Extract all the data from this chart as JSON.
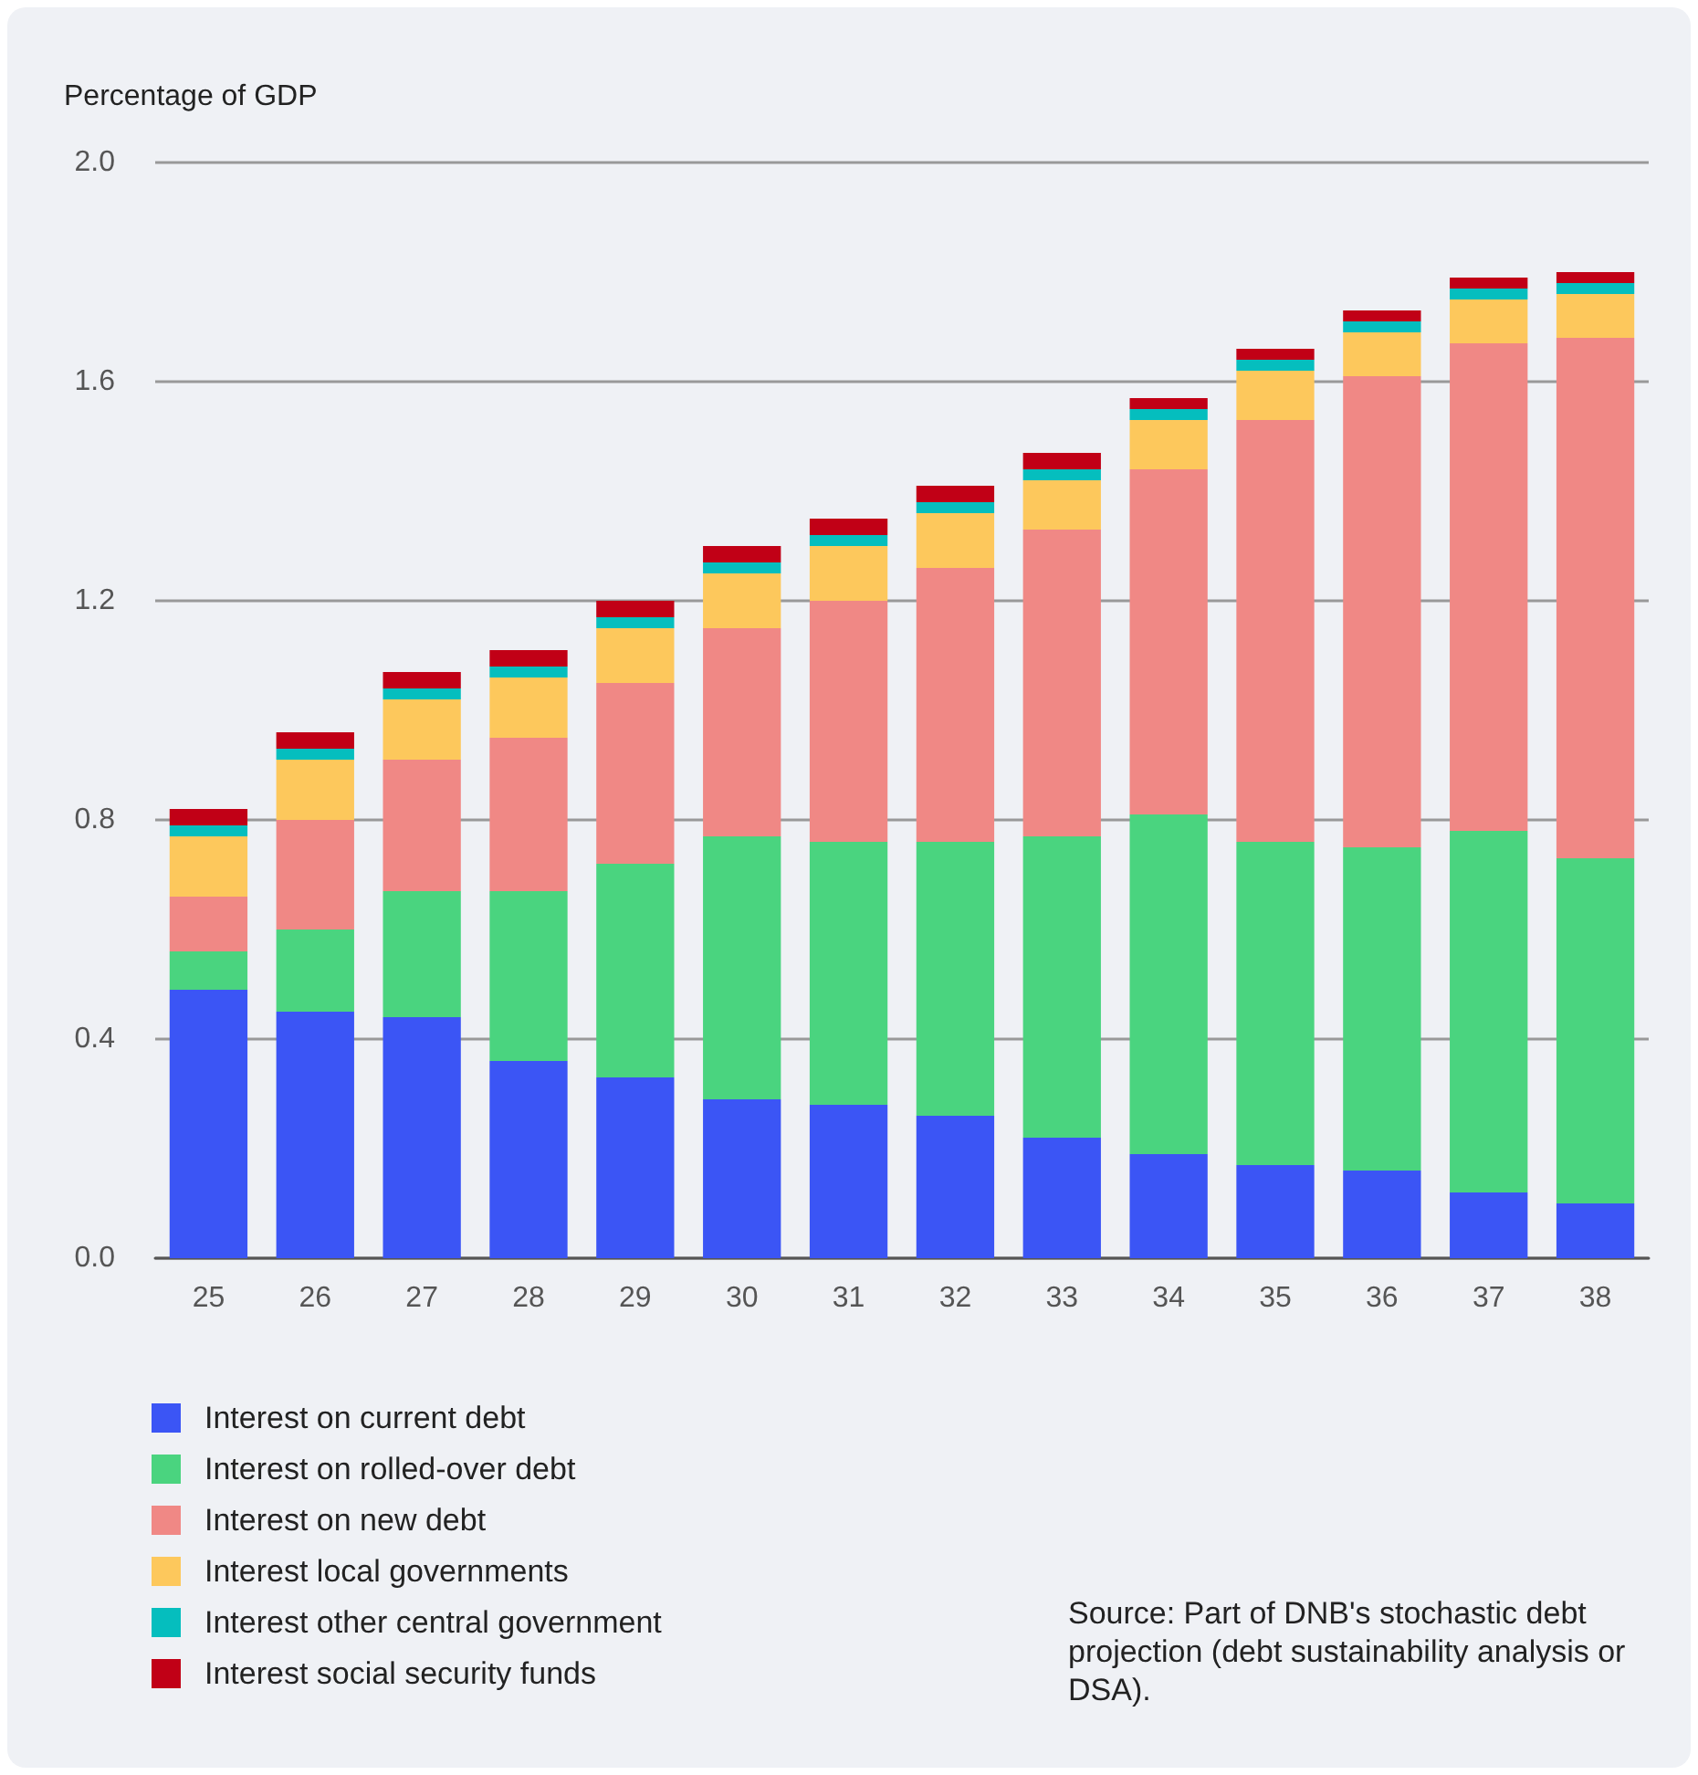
{
  "chart_data": {
    "type": "bar",
    "stacked": true,
    "ylabel": "Percentage of GDP",
    "categories": [
      "25",
      "26",
      "27",
      "28",
      "29",
      "30",
      "31",
      "32",
      "33",
      "34",
      "35",
      "36",
      "37",
      "38"
    ],
    "series": [
      {
        "name": "Interest on current debt",
        "color": "#3b55f5",
        "values": [
          0.49,
          0.45,
          0.44,
          0.36,
          0.33,
          0.29,
          0.28,
          0.26,
          0.22,
          0.19,
          0.17,
          0.16,
          0.12,
          0.1
        ]
      },
      {
        "name": "Interest on rolled-over debt",
        "color": "#4ad47f",
        "values": [
          0.07,
          0.15,
          0.23,
          0.31,
          0.39,
          0.48,
          0.48,
          0.5,
          0.55,
          0.62,
          0.59,
          0.59,
          0.66,
          0.63
        ]
      },
      {
        "name": "Interest on new debt",
        "color": "#f08885",
        "values": [
          0.1,
          0.2,
          0.24,
          0.28,
          0.33,
          0.38,
          0.44,
          0.5,
          0.56,
          0.63,
          0.77,
          0.86,
          0.89,
          0.95
        ]
      },
      {
        "name": "Interest local governments",
        "color": "#fdc85c",
        "values": [
          0.11,
          0.11,
          0.11,
          0.11,
          0.1,
          0.1,
          0.1,
          0.1,
          0.09,
          0.09,
          0.09,
          0.08,
          0.08,
          0.08
        ]
      },
      {
        "name": "Interest other central government",
        "color": "#05bebe",
        "values": [
          0.02,
          0.02,
          0.02,
          0.02,
          0.02,
          0.02,
          0.02,
          0.02,
          0.02,
          0.02,
          0.02,
          0.02,
          0.02,
          0.02
        ]
      },
      {
        "name": "Interest social security funds",
        "color": "#c10016",
        "values": [
          0.03,
          0.03,
          0.03,
          0.03,
          0.03,
          0.03,
          0.03,
          0.03,
          0.03,
          0.02,
          0.02,
          0.02,
          0.02,
          0.02
        ]
      }
    ],
    "ylim": [
      0,
      2.0
    ],
    "yticks": [
      {
        "value": 0,
        "label": "0.0"
      },
      {
        "value": 0.4,
        "label": "0.4"
      },
      {
        "value": 0.8,
        "label": "0.8"
      },
      {
        "value": 1.2,
        "label": "1.2"
      },
      {
        "value": 1.6,
        "label": "1.6"
      },
      {
        "value": 2.0,
        "label": "2.0"
      }
    ],
    "grid": "y",
    "legend": "bottom left",
    "annotations": [
      "Source: Part of DNB's stochastic debt projection (debt sustainability analysis or DSA)."
    ]
  }
}
